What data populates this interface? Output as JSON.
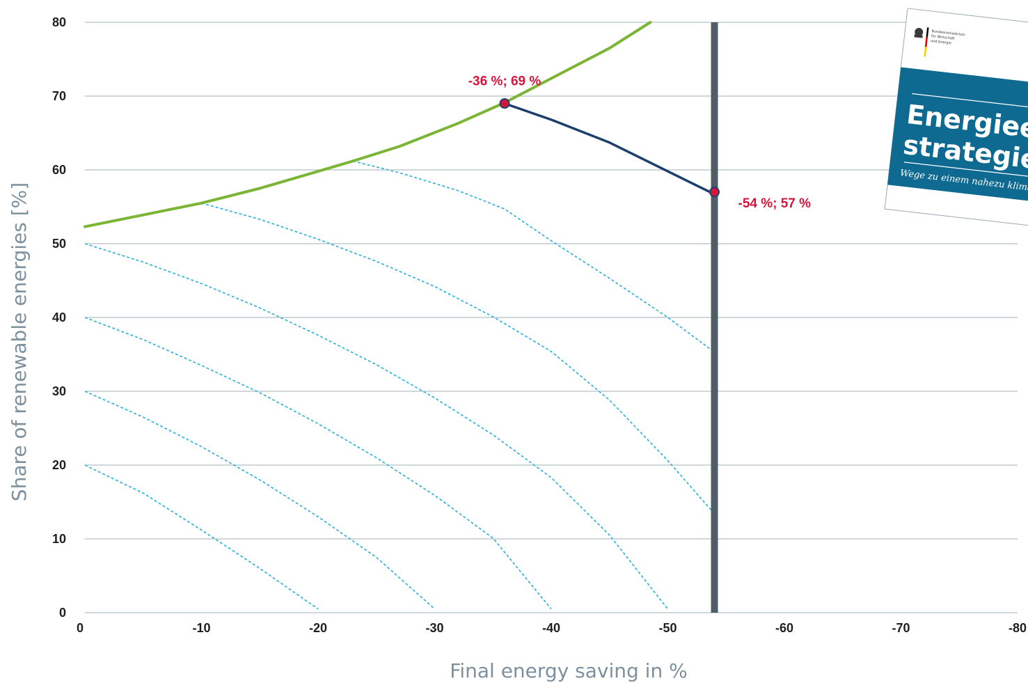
{
  "chart_data": {
    "type": "line",
    "xlabel": "Final energy saving in %",
    "ylabel": "Share of renewable energies [%]",
    "xlim": [
      0,
      -80
    ],
    "ylim": [
      0,
      80
    ],
    "x_ticks": [
      "0",
      "-10",
      "-20",
      "-30",
      "-40",
      "-50",
      "-60",
      "-70",
      "-80"
    ],
    "y_ticks": [
      "0",
      "10",
      "20",
      "30",
      "40",
      "50",
      "60",
      "70",
      "80"
    ],
    "grid": "horizontal",
    "colors": {
      "green": "#7bb536",
      "path": "#1d3f6e",
      "iso": "#3bb6d6",
      "limit": "#4e5d66",
      "annotation": "#d5163a",
      "cover_blue": "#0f6a92"
    },
    "series": [
      {
        "style": "green-curve",
        "x": [
          0,
          -5,
          -10,
          -15,
          -20,
          -23,
          -27,
          -32,
          -36,
          -40,
          -45,
          -48.5
        ],
        "y": [
          52.3,
          53.9,
          55.5,
          57.5,
          59.8,
          61.2,
          63.2,
          66.3,
          69.1,
          72.4,
          76.5,
          80
        ]
      },
      {
        "style": "path-curve",
        "x": [
          -36,
          -40,
          -45,
          -50,
          -54
        ],
        "y": [
          69,
          66.8,
          63.7,
          59.8,
          56.7
        ]
      },
      {
        "style": "limit-line",
        "x": [
          -54,
          -54
        ],
        "y": [
          0,
          80
        ]
      },
      {
        "style": "iso-dashed",
        "x": [
          0,
          -5,
          -10,
          -15,
          -20
        ],
        "y": [
          20,
          16.2,
          11.2,
          6,
          0.5
        ]
      },
      {
        "style": "iso-dashed",
        "x": [
          0,
          -5,
          -10,
          -15,
          -20,
          -25,
          -30
        ],
        "y": [
          30,
          26.5,
          22.5,
          18,
          13,
          7.5,
          0.5
        ]
      },
      {
        "style": "iso-dashed",
        "x": [
          0,
          -5,
          -10,
          -15,
          -20,
          -25,
          -30,
          -35,
          -40
        ],
        "y": [
          40,
          37,
          33.5,
          29.8,
          25.6,
          21,
          15.9,
          10.1,
          0.5
        ]
      },
      {
        "style": "iso-dashed",
        "x": [
          0,
          -5,
          -10,
          -15,
          -20,
          -25,
          -30,
          -35,
          -40,
          -45,
          -50
        ],
        "y": [
          50,
          47.5,
          44.6,
          41.3,
          37.6,
          33.6,
          29.1,
          24.1,
          18.3,
          10.5,
          0.5
        ]
      },
      {
        "style": "iso-dashed",
        "x": [
          -10,
          -15,
          -20,
          -25,
          -30,
          -35,
          -40,
          -45,
          -50,
          -54
        ],
        "y": [
          55.5,
          53.3,
          50.6,
          47.6,
          44.2,
          40.1,
          35.4,
          28.8,
          20.6,
          13.4
        ]
      },
      {
        "style": "iso-dashed",
        "x": [
          -23,
          -27,
          -32,
          -36,
          -40,
          -45,
          -50,
          -54
        ],
        "y": [
          61.2,
          59.6,
          57.2,
          54.7,
          50.4,
          45.3,
          40,
          35.3
        ]
      }
    ],
    "points": [
      {
        "x": -36,
        "y": 69,
        "label": "-36 %; 69 %"
      },
      {
        "x": -54,
        "y": 57,
        "label": "-54 %; 57 %"
      }
    ]
  },
  "cover": {
    "ministry": [
      "Bundesministerium",
      "für Wirtschaft",
      "und Energie"
    ],
    "title_line1": "Energieeff",
    "title_line2": "strategie G",
    "subtitle": "Wege zu einem nahezu kliman"
  }
}
